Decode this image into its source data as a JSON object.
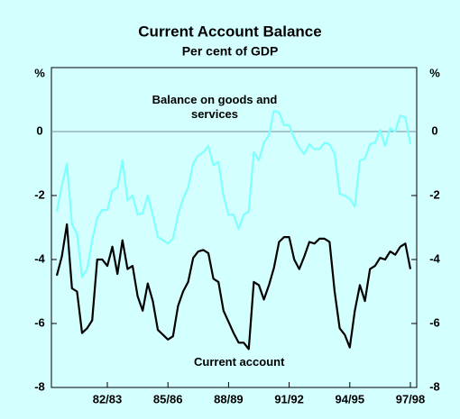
{
  "chart_data": {
    "type": "line",
    "title": "Current Account Balance",
    "subtitle": "Per cent of GDP",
    "y_label": "%",
    "categories": [
      null,
      null,
      null,
      null,
      null,
      null,
      null,
      null,
      null,
      null,
      "82/83",
      null,
      null,
      null,
      null,
      null,
      null,
      null,
      null,
      null,
      null,
      null,
      "85/86",
      null,
      null,
      null,
      null,
      null,
      null,
      null,
      null,
      null,
      null,
      null,
      "88/89",
      null,
      null,
      null,
      null,
      null,
      null,
      null,
      null,
      null,
      null,
      null,
      "91/92",
      null,
      null,
      null,
      null,
      null,
      null,
      null,
      null,
      null,
      null,
      null,
      "94/95",
      null,
      null,
      null,
      null,
      null,
      null,
      null,
      null,
      null,
      null,
      null,
      "97/98"
    ],
    "series": [
      {
        "name": "Balance on goods and services",
        "color": "#80ffff",
        "values": [
          -2.5,
          -1.7,
          -1.0,
          -2.9,
          -3.2,
          -4.55,
          -4.3,
          -3.4,
          -2.7,
          -2.45,
          -2.45,
          -1.85,
          -1.75,
          -0.9,
          -2.15,
          -2.0,
          -2.6,
          -2.55,
          -2.0,
          -2.6,
          -3.3,
          -3.4,
          -3.5,
          -3.35,
          -2.6,
          -2.1,
          -1.75,
          -1.0,
          -0.75,
          -0.65,
          -0.45,
          -1.05,
          -0.95,
          -2.0,
          -2.6,
          -2.6,
          -3.05,
          -2.6,
          -2.5,
          -0.65,
          -0.9,
          -0.35,
          -0.1,
          0.65,
          0.6,
          0.2,
          0.2,
          -0.2,
          -0.5,
          -0.7,
          -0.4,
          -0.55,
          -0.55,
          -0.35,
          -0.4,
          -0.7,
          -1.95,
          -2.0,
          -2.1,
          -2.35,
          -0.9,
          -0.85,
          -0.4,
          -0.35,
          0.05,
          -0.45,
          0.1,
          0.0,
          0.5,
          0.45,
          -0.4
        ]
      },
      {
        "name": "Current account",
        "color": "#000000",
        "values": [
          -4.5,
          -3.9,
          -2.9,
          -4.9,
          -5.0,
          -6.3,
          -6.15,
          -5.9,
          -4.0,
          -4.0,
          -4.2,
          -3.6,
          -4.45,
          -3.4,
          -4.3,
          -4.2,
          -5.15,
          -5.6,
          -4.75,
          -5.3,
          -6.2,
          -6.35,
          -6.5,
          -6.4,
          -5.45,
          -5.0,
          -4.7,
          -3.95,
          -3.75,
          -3.7,
          -3.8,
          -4.6,
          -4.7,
          -5.6,
          -5.95,
          -6.3,
          -6.6,
          -6.6,
          -6.8,
          -4.7,
          -4.8,
          -5.25,
          -4.8,
          -4.25,
          -3.45,
          -3.3,
          -3.3,
          -4.0,
          -4.3,
          -3.9,
          -3.45,
          -3.5,
          -3.35,
          -3.35,
          -3.45,
          -5.0,
          -6.15,
          -6.35,
          -6.75,
          -5.6,
          -4.8,
          -5.3,
          -4.3,
          -4.2,
          -3.95,
          -4.0,
          -3.75,
          -3.85,
          -3.6,
          -3.5,
          -4.3
        ]
      }
    ],
    "ylim": [
      -8,
      2
    ],
    "yticks": [
      -8,
      -6,
      -4,
      -2,
      0
    ]
  }
}
